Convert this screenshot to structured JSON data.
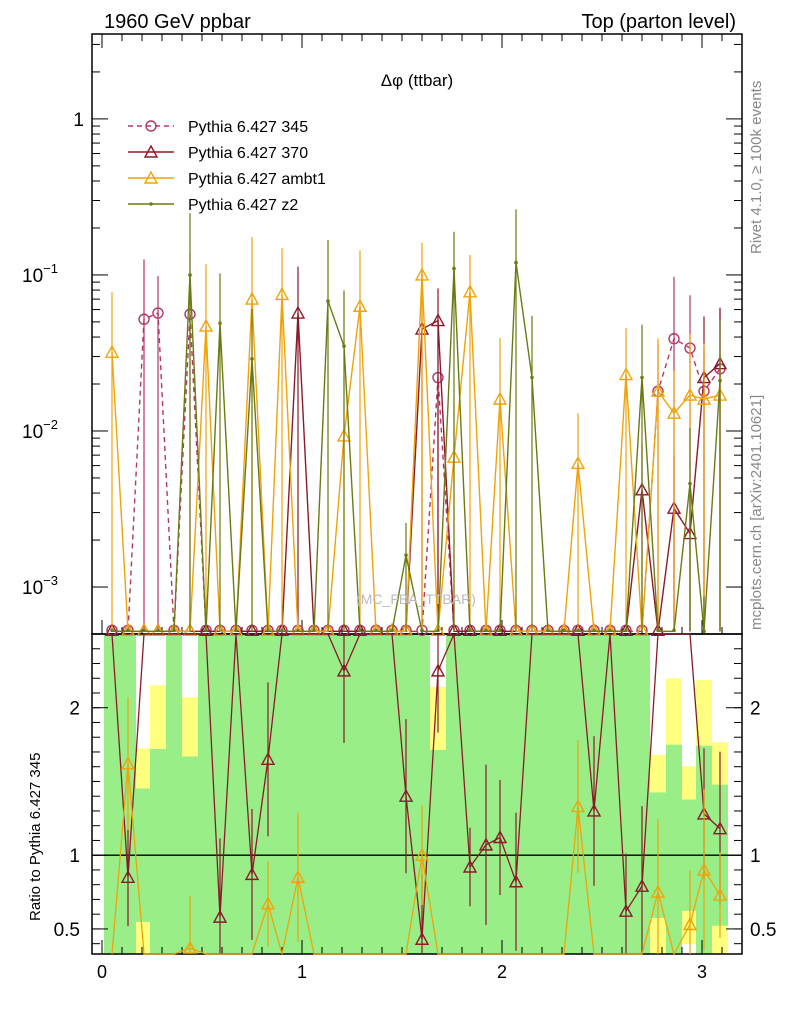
{
  "header": {
    "left_title": "1960 GeV ppbar",
    "right_title": "Top (parton level)"
  },
  "side_labels": {
    "rivet": "Rivet 4.1.0, ≥ 100k events",
    "mcplots": "mcplots.cern.ch [arXiv:2401.10621]"
  },
  "watermark": "(MC_FBA_TTBAR)",
  "chart_data": {
    "type": "line",
    "title": "Δφ (ttbar)",
    "xlabel": "",
    "ylabel": "",
    "xlim": [
      -0.05,
      3.2
    ],
    "ylim": [
      0.0005,
      3.5
    ],
    "yscale": "log",
    "x_ticks": [
      0,
      1,
      2,
      3
    ],
    "x_tick_labels": [
      "0",
      "1",
      "2",
      "3"
    ],
    "y_ticks": [
      1,
      0.1,
      0.01,
      0.001
    ],
    "y_tick_labels": [
      {
        "base": "1",
        "exp": ""
      },
      {
        "base": "10",
        "exp": "−1"
      },
      {
        "base": "10",
        "exp": "−2"
      },
      {
        "base": "10",
        "exp": "−3"
      }
    ],
    "floor_value": 0.00052,
    "x": [
      0.05,
      0.13,
      0.21,
      0.28,
      0.36,
      0.44,
      0.52,
      0.59,
      0.67,
      0.75,
      0.83,
      0.9,
      0.98,
      1.06,
      1.13,
      1.21,
      1.29,
      1.37,
      1.45,
      1.52,
      1.6,
      1.68,
      1.76,
      1.84,
      1.92,
      1.99,
      2.07,
      2.15,
      2.23,
      2.31,
      2.38,
      2.46,
      2.54,
      2.62,
      2.7,
      2.78,
      2.86,
      2.94,
      3.01,
      3.09
    ],
    "series": [
      {
        "name": "Pythia 6.427 345",
        "color": "#b3366a",
        "dash": "5,4",
        "marker": "circle",
        "values": [
          0,
          0,
          0.052,
          0.057,
          0,
          0.056,
          0,
          0,
          0,
          0,
          0,
          0,
          0,
          0,
          0,
          0,
          0,
          0,
          0,
          0,
          0,
          0.022,
          0,
          0,
          0,
          0,
          0,
          0,
          0,
          0,
          0,
          0,
          0,
          0,
          0,
          0.018,
          0.039,
          0.034,
          0.018,
          0.025
        ]
      },
      {
        "name": "Pythia 6.427 370",
        "color": "#8b1a2a",
        "dash": "",
        "marker": "triangle",
        "values": [
          0,
          0,
          0,
          0,
          0,
          0,
          0,
          0,
          0,
          0,
          0,
          0,
          0.057,
          0,
          0,
          0,
          0,
          0,
          0,
          0,
          0.045,
          0.051,
          0,
          0,
          0,
          0,
          0,
          0,
          0,
          0,
          0,
          0,
          0,
          0,
          0.0042,
          0,
          0.0032,
          0.0022,
          0.022,
          0.027
        ]
      },
      {
        "name": "Pythia 6.427 ambt1",
        "color": "#f0a30a",
        "dash": "",
        "marker": "triangle",
        "values": [
          0.032,
          0,
          0,
          0,
          0,
          0,
          0.047,
          0,
          0,
          0.07,
          0,
          0.075,
          0,
          0,
          0,
          0.0093,
          0.063,
          0,
          0,
          0,
          0.1,
          0,
          0.0068,
          0.078,
          0,
          0.016,
          0,
          0,
          0,
          0,
          0.0062,
          0,
          0,
          0.023,
          0,
          0.018,
          0.013,
          0.017,
          0.016,
          0.017
        ]
      },
      {
        "name": "Pythia 6.427 z2",
        "color": "#6b7a12",
        "dash": "",
        "marker": "dot",
        "values": [
          0,
          0,
          0,
          0,
          0,
          0.1,
          0,
          0.049,
          0,
          0.029,
          0,
          0,
          0,
          0,
          0.068,
          0.035,
          0,
          0,
          0,
          0.0016,
          0,
          0,
          0.11,
          0,
          0,
          0,
          0.12,
          0.022,
          0,
          0,
          0,
          0,
          0,
          0,
          0.022,
          0,
          0,
          0.0046,
          0.0005,
          0.021
        ]
      }
    ],
    "ratio": {
      "ylabel": "Ratio to Pythia 6.427 345",
      "ylim": [
        0.33,
        2.5
      ],
      "y_ticks": [
        0.5,
        1,
        2
      ],
      "y_tick_labels": [
        "0.5",
        "1",
        "2"
      ],
      "reference": 1,
      "series": [
        {
          "name": "Pythia 6.427 370",
          "values": [
            null,
            0.85,
            null,
            null,
            null,
            null,
            null,
            0.58,
            null,
            0.87,
            1.65,
            null,
            null,
            null,
            null,
            2.25,
            null,
            null,
            null,
            1.4,
            0.43,
            2.25,
            null,
            0.92,
            1.07,
            1.12,
            0.82,
            null,
            null,
            null,
            null,
            1.3,
            null,
            0.62,
            0.79,
            null,
            null,
            null,
            1.28,
            1.18
          ]
        },
        {
          "name": "Pythia 6.427 ambt1",
          "values": [
            null,
            1.62,
            null,
            null,
            null,
            0.37,
            null,
            null,
            null,
            null,
            0.67,
            null,
            0.85,
            null,
            null,
            null,
            null,
            null,
            null,
            null,
            1.0,
            null,
            null,
            null,
            null,
            null,
            null,
            null,
            null,
            null,
            1.33,
            null,
            null,
            null,
            null,
            0.75,
            null,
            0.53,
            0.9,
            0.73
          ]
        }
      ]
    }
  }
}
